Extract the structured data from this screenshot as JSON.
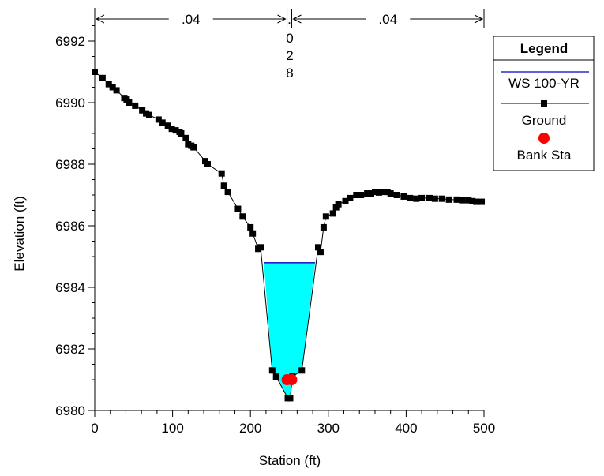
{
  "chart_data": {
    "type": "line",
    "xlabel": "Station (ft)",
    "ylabel": "Elevation (ft)",
    "xlim": [
      0,
      500
    ],
    "ylim": [
      6980,
      6993
    ],
    "x_ticks": [
      0,
      100,
      200,
      300,
      400,
      500
    ],
    "x_tick_labels": [
      "0",
      "100",
      "200",
      "300",
      "400",
      "500"
    ],
    "y_ticks": [
      6980,
      6982,
      6984,
      6986,
      6988,
      6990,
      6992
    ],
    "y_tick_labels": [
      "6980",
      "6982",
      "6984",
      "6986",
      "6988",
      "6990",
      "6992"
    ],
    "grid": false,
    "legend": {
      "title": "Legend",
      "position": "top-right",
      "entries": [
        "WS 100-YR",
        "Ground",
        "Bank Sta"
      ]
    },
    "mannings_n": [
      {
        "label": ".04",
        "x_start": 0,
        "x_end": 247
      },
      {
        "label": "0\n2\n8",
        "x_start": 247,
        "x_end": 253
      },
      {
        "label": ".04",
        "x_start": 253,
        "x_end": 500
      }
    ],
    "series": [
      {
        "name": "Ground",
        "color": "#000000",
        "marker": "square",
        "x": [
          0,
          10,
          18,
          23,
          28,
          38,
          41,
          44,
          52,
          61,
          66,
          70,
          82,
          87,
          94,
          99,
          104,
          109,
          111,
          117,
          120,
          124,
          127,
          142,
          145,
          163,
          166,
          171,
          184,
          190,
          200,
          203,
          210,
          213,
          228,
          233,
          248,
          251,
          254,
          266,
          287,
          290,
          294,
          297,
          306,
          310,
          313,
          322,
          328,
          336,
          342,
          350,
          355,
          360,
          365,
          371,
          376,
          380,
          388,
          397,
          405,
          413,
          420,
          430,
          437,
          446,
          455,
          465,
          472,
          480,
          485,
          490,
          497
        ],
        "y": [
          6991.0,
          6990.8,
          6990.6,
          6990.5,
          6990.4,
          6990.15,
          6990.1,
          6990.0,
          6989.9,
          6989.75,
          6989.65,
          6989.6,
          6989.45,
          6989.35,
          6989.25,
          6989.15,
          6989.1,
          6989.05,
          6989.0,
          6988.85,
          6988.65,
          6988.6,
          6988.55,
          6988.1,
          6988.0,
          6987.7,
          6987.3,
          6987.1,
          6986.55,
          6986.3,
          6985.95,
          6985.75,
          6985.25,
          6985.3,
          6981.3,
          6981.1,
          6980.4,
          6980.4,
          6981.1,
          6981.3,
          6985.3,
          6985.15,
          6985.95,
          6986.3,
          6986.4,
          6986.6,
          6986.7,
          6986.8,
          6986.9,
          6987.0,
          6987.0,
          6987.05,
          6987.05,
          6987.1,
          6987.08,
          6987.1,
          6987.1,
          6987.05,
          6987.0,
          6986.95,
          6986.9,
          6986.88,
          6986.9,
          6986.9,
          6986.88,
          6986.88,
          6986.85,
          6986.85,
          6986.83,
          6986.83,
          6986.8,
          6986.78,
          6986.78
        ]
      },
      {
        "name": "WS 100-YR",
        "color": "#0000c0",
        "fill": "#00ffff",
        "elevation": 6984.8,
        "x_start": 217.2,
        "x_end": 283.1
      },
      {
        "name": "Bank Sta",
        "color": "#ff0000",
        "marker": "circle",
        "x": [
          247,
          253
        ],
        "y": [
          6981.0,
          6981.0
        ]
      }
    ]
  }
}
